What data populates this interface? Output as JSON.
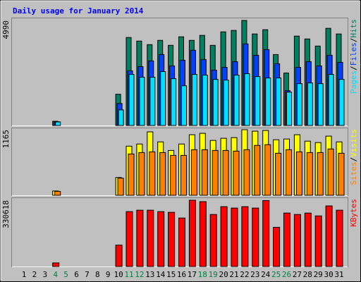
{
  "title": "Daily usage for January 2014",
  "categories": [
    "1",
    "2",
    "3",
    "4",
    "5",
    "6",
    "7",
    "8",
    "9",
    "10",
    "11",
    "12",
    "13",
    "14",
    "15",
    "16",
    "17",
    "18",
    "19",
    "20",
    "21",
    "22",
    "23",
    "24",
    "25",
    "26",
    "27",
    "28",
    "29",
    "30",
    "31"
  ],
  "category_colors": [
    "#000000",
    "#000000",
    "#000000",
    "#008040",
    "#008040",
    "#000000",
    "#000000",
    "#000000",
    "#000000",
    "#000000",
    "#008040",
    "#008040",
    "#000000",
    "#000000",
    "#000000",
    "#000000",
    "#000000",
    "#008040",
    "#008040",
    "#000000",
    "#000000",
    "#000000",
    "#000000",
    "#000000",
    "#008040",
    "#008040",
    "#000000",
    "#000000",
    "#000000",
    "#000000",
    "#000000"
  ],
  "legend_separator": "/",
  "chart_data": [
    {
      "type": "bar",
      "ylim": [
        0,
        4990
      ],
      "yticks": [
        4990
      ],
      "series": [
        {
          "name": "Hits",
          "color": "#008060",
          "values": [
            0,
            0,
            0,
            200,
            0,
            0,
            0,
            0,
            0,
            1484,
            4180,
            4010,
            3840,
            4044,
            3808,
            4212,
            4044,
            4280,
            3808,
            4448,
            4516,
            4990,
            4348,
            4550,
            3370,
            2494,
            4246,
            4111,
            3774,
            4617,
            4348
          ]
        },
        {
          "name": "Files",
          "color": "#0040FF",
          "values": [
            0,
            0,
            0,
            180,
            0,
            0,
            0,
            0,
            0,
            1045,
            2595,
            2797,
            3067,
            3370,
            2831,
            3100,
            3572,
            3134,
            2629,
            2763,
            3033,
            3875,
            3336,
            3606,
            2932,
            1651,
            2763,
            3033,
            2831,
            3336,
            3000
          ]
        },
        {
          "name": "Pages",
          "color": "#00E0FF",
          "values": [
            0,
            0,
            0,
            170,
            0,
            0,
            0,
            0,
            0,
            741,
            2426,
            2292,
            2292,
            2561,
            2224,
            1887,
            2426,
            2393,
            2190,
            2157,
            2393,
            2460,
            2325,
            2258,
            2258,
            1584,
            1988,
            2022,
            1988,
            2426,
            2190
          ]
        }
      ]
    },
    {
      "type": "bar",
      "ylim": [
        0,
        1165
      ],
      "yticks": [
        1165
      ],
      "series": [
        {
          "name": "Visits",
          "color": "#FFFF00",
          "values": [
            0,
            0,
            0,
            76,
            0,
            0,
            0,
            0,
            0,
            316,
            873,
            911,
            1127,
            949,
            797,
            911,
            1076,
            1101,
            975,
            1013,
            1025,
            1165,
            1139,
            1152,
            987,
            1000,
            1076,
            962,
            937,
            1051,
            949
          ]
        },
        {
          "name": "Sites",
          "color": "#FF8000",
          "values": [
            0,
            0,
            0,
            70,
            0,
            0,
            0,
            0,
            0,
            304,
            734,
            759,
            772,
            759,
            709,
            709,
            810,
            810,
            797,
            797,
            785,
            810,
            886,
            899,
            747,
            810,
            772,
            759,
            759,
            823,
            747
          ]
        }
      ]
    },
    {
      "type": "bar",
      "ylim": [
        0,
        330618
      ],
      "yticks": [
        330618
      ],
      "series": [
        {
          "name": "KBytes",
          "color": "#FF0000",
          "values": [
            0,
            0,
            0,
            17775,
            0,
            0,
            0,
            0,
            0,
            106650,
            273750,
            280860,
            280860,
            273750,
            270195,
            241740,
            330618,
            323500,
            259500,
            298600,
            291500,
            298600,
            291500,
            329000,
            195500,
            266600,
            259500,
            266600,
            252400,
            302200,
            280860
          ]
        }
      ]
    }
  ]
}
